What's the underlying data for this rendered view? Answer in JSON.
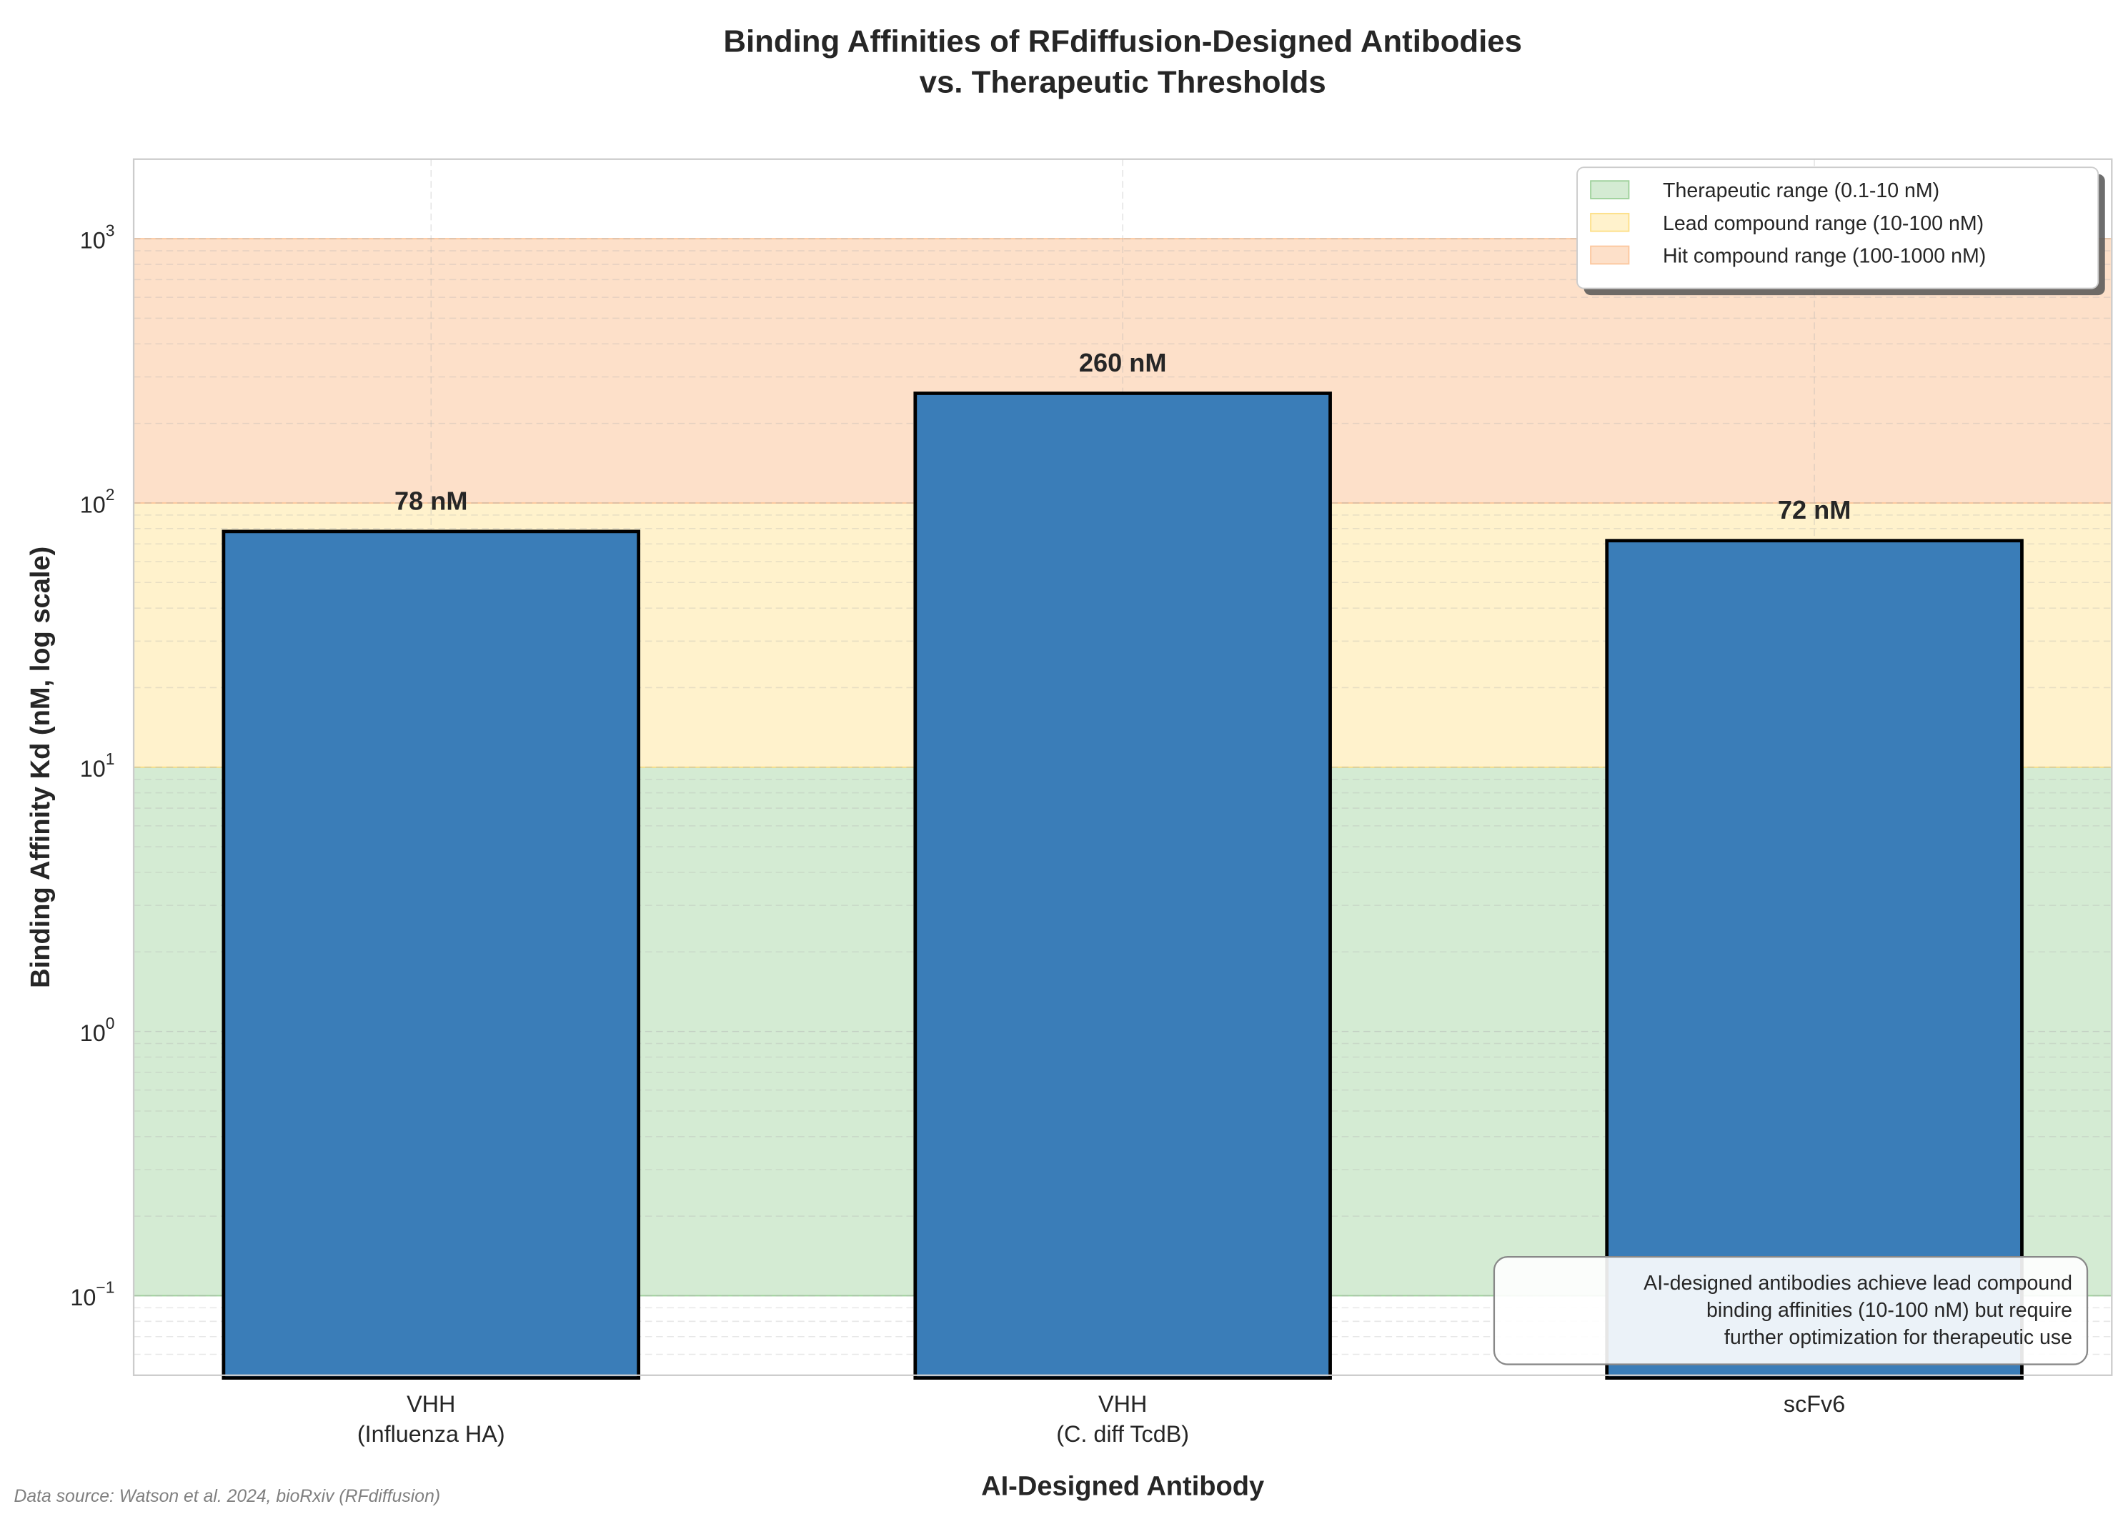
{
  "chart_data": {
    "type": "bar",
    "title": "Binding Affinities of RFdiffusion-Designed Antibodies\nvs. Therapeutic Thresholds",
    "xlabel": "AI-Designed Antibody",
    "ylabel": "Binding Affinity Kd (nM, log scale)",
    "yscale": "log",
    "ylim": [
      0.05,
      2000
    ],
    "yticks": [
      0.1,
      1,
      10,
      100,
      1000
    ],
    "ytick_labels": [
      [
        "10",
        "−1"
      ],
      [
        "10",
        "0"
      ],
      [
        "10",
        "1"
      ],
      [
        "10",
        "2"
      ],
      [
        "10",
        "3"
      ]
    ],
    "categories": [
      "VHH\n(Influenza HA)",
      "VHH\n(C. diff TcdB)",
      "scFv6"
    ],
    "values": [
      78,
      260,
      72
    ],
    "data_labels": [
      "78 nM",
      "260 nM",
      "72 nM"
    ],
    "bar_color": "#3a7db8",
    "bar_edge_color": "#000000",
    "grid": true,
    "bands": [
      {
        "name": "Therapeutic range (0.1-10 nM)",
        "range": [
          0.1,
          10
        ],
        "color": "#d4ebd3",
        "edge": "#9fd19c"
      },
      {
        "name": "Lead compound range (10-100 nM)",
        "range": [
          10,
          100
        ],
        "color": "#fff2cc",
        "edge": "#fde08a"
      },
      {
        "name": "Hit compound range (100-1000 nM)",
        "range": [
          100,
          1000
        ],
        "color": "#fde0c9",
        "edge": "#fbc79e"
      }
    ],
    "legend_position": "top-right",
    "annotation": "AI-designed antibodies achieve lead compound\nbinding affinities (10-100 nM) but require\nfurther optimization for therapeutic use",
    "source_note": "Data source: Watson et al. 2024, bioRxiv (RFdiffusion)"
  }
}
